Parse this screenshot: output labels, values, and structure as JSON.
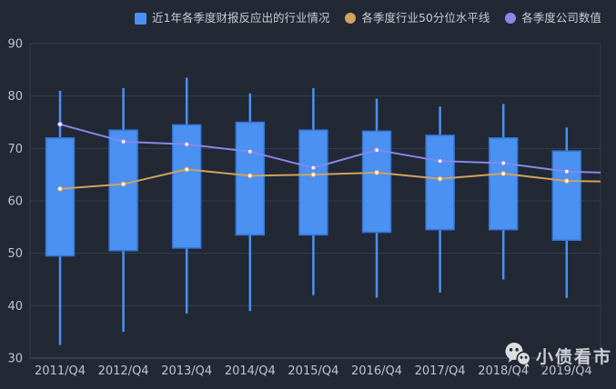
{
  "legend": {
    "items": [
      {
        "label": "近1年各季度财报反应出的行业情况",
        "marker": "square",
        "color": "#4a91f2"
      },
      {
        "label": "各季度行业50分位水平线",
        "marker": "circle",
        "color": "#d0a35f"
      },
      {
        "label": "各季度公司数值",
        "marker": "circle",
        "color": "#8688ea"
      }
    ]
  },
  "watermark": {
    "text": "小债看市",
    "logo": "chat-bubbles-logo"
  },
  "colors": {
    "background": "#222834",
    "grid_line": "#333e50",
    "axis_line": "#46536b",
    "axis_label": "#bdc4d0",
    "candle_fill": "#4a91f2",
    "candle_border": "#3575d4",
    "median_line": "#d0a35f",
    "company_line": "#8688ea",
    "point_fill": "#ffffff"
  },
  "chart_data": {
    "type": "candlestick",
    "title": "",
    "xlabel": "",
    "ylabel": "",
    "categories": [
      "2011/Q4",
      "2012/Q4",
      "2013/Q4",
      "2014/Q4",
      "2015/Q4",
      "2016/Q4",
      "2017/Q4",
      "2018/Q4",
      "2019/Q4"
    ],
    "ylim": [
      30,
      90
    ],
    "yticks": [
      30,
      40,
      50,
      60,
      70,
      80,
      90
    ],
    "grid": true,
    "legend_position": "top",
    "value_format": [
      "min",
      "box_low",
      "box_high",
      "max"
    ],
    "series": [
      {
        "name": "近1年各季度财报反应出的行业情况",
        "type": "candlestick",
        "color": "#4a91f2",
        "values": [
          [
            32.5,
            49.5,
            72.0,
            81.0
          ],
          [
            35.0,
            50.5,
            73.5,
            81.5
          ],
          [
            38.5,
            51.0,
            74.5,
            83.5
          ],
          [
            39.0,
            53.5,
            75.0,
            80.5
          ],
          [
            42.0,
            53.5,
            73.5,
            81.5
          ],
          [
            41.5,
            54.0,
            73.3,
            79.5
          ],
          [
            42.5,
            54.5,
            72.5,
            78.0
          ],
          [
            45.0,
            54.5,
            72.0,
            78.5
          ],
          [
            41.5,
            52.5,
            69.5,
            74.0
          ]
        ]
      },
      {
        "name": "各季度行业50分位水平线",
        "type": "line",
        "color": "#d0a35f",
        "values": [
          62.3,
          63.2,
          66.0,
          64.8,
          65.0,
          65.4,
          64.2,
          65.2,
          63.8
        ],
        "edge_value": 63.7
      },
      {
        "name": "各季度公司数值",
        "type": "line",
        "color": "#8688ea",
        "values": [
          74.6,
          71.3,
          70.8,
          69.4,
          66.3,
          69.7,
          67.6,
          67.2,
          65.6
        ],
        "edge_value": 65.4
      }
    ]
  }
}
